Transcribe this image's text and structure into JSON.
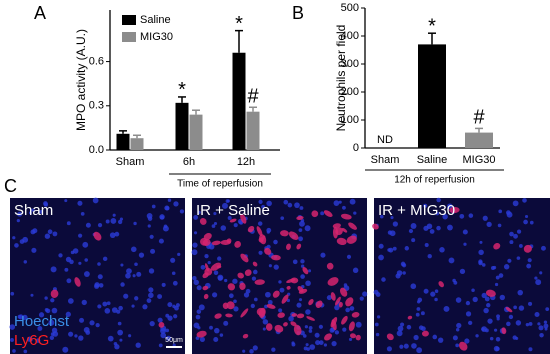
{
  "chart_data": [
    {
      "type": "bar",
      "panel": "A",
      "y_label": "MPO activity (A.U.)",
      "categories": [
        "Sham",
        "6h",
        "12h"
      ],
      "group_label": "Time of reperfusion",
      "series": [
        {
          "name": "Saline",
          "color": "#000000",
          "values": [
            0.11,
            0.32,
            0.66
          ],
          "errors": [
            0.02,
            0.04,
            0.15
          ],
          "annotations": [
            null,
            "*",
            "*"
          ]
        },
        {
          "name": "MIG30",
          "color": "#8c8c8c",
          "values": [
            0.08,
            0.24,
            0.26
          ],
          "errors": [
            0.02,
            0.03,
            0.03
          ],
          "annotations": [
            null,
            null,
            "#"
          ]
        }
      ],
      "ylim": [
        0,
        0.95
      ],
      "yticks": [
        {
          "value": 0,
          "label": "0.0"
        },
        0.3,
        0.6
      ],
      "legend": "upper left"
    },
    {
      "type": "bar",
      "panel": "B",
      "y_label": "Neutrophils per field",
      "categories": [
        "Sham",
        "Saline",
        "MIG30"
      ],
      "group_label": "12h of reperfusion",
      "values": [
        null,
        370,
        55
      ],
      "errors": [
        null,
        40,
        15
      ],
      "colors": [
        "#000000",
        "#000000",
        "#8c8c8c"
      ],
      "annotations": [
        "ND",
        "*",
        "#"
      ],
      "ylim": [
        0,
        500
      ],
      "yticks": [
        0,
        100,
        200,
        300,
        400,
        500
      ]
    }
  ],
  "images": {
    "panel": "C",
    "panels": [
      {
        "label": "Sham"
      },
      {
        "label": "IR + Saline"
      },
      {
        "label": "IR + MIG30"
      }
    ],
    "stains": [
      "Hoechst",
      "Ly6G"
    ],
    "scale_bar": "50μm"
  }
}
